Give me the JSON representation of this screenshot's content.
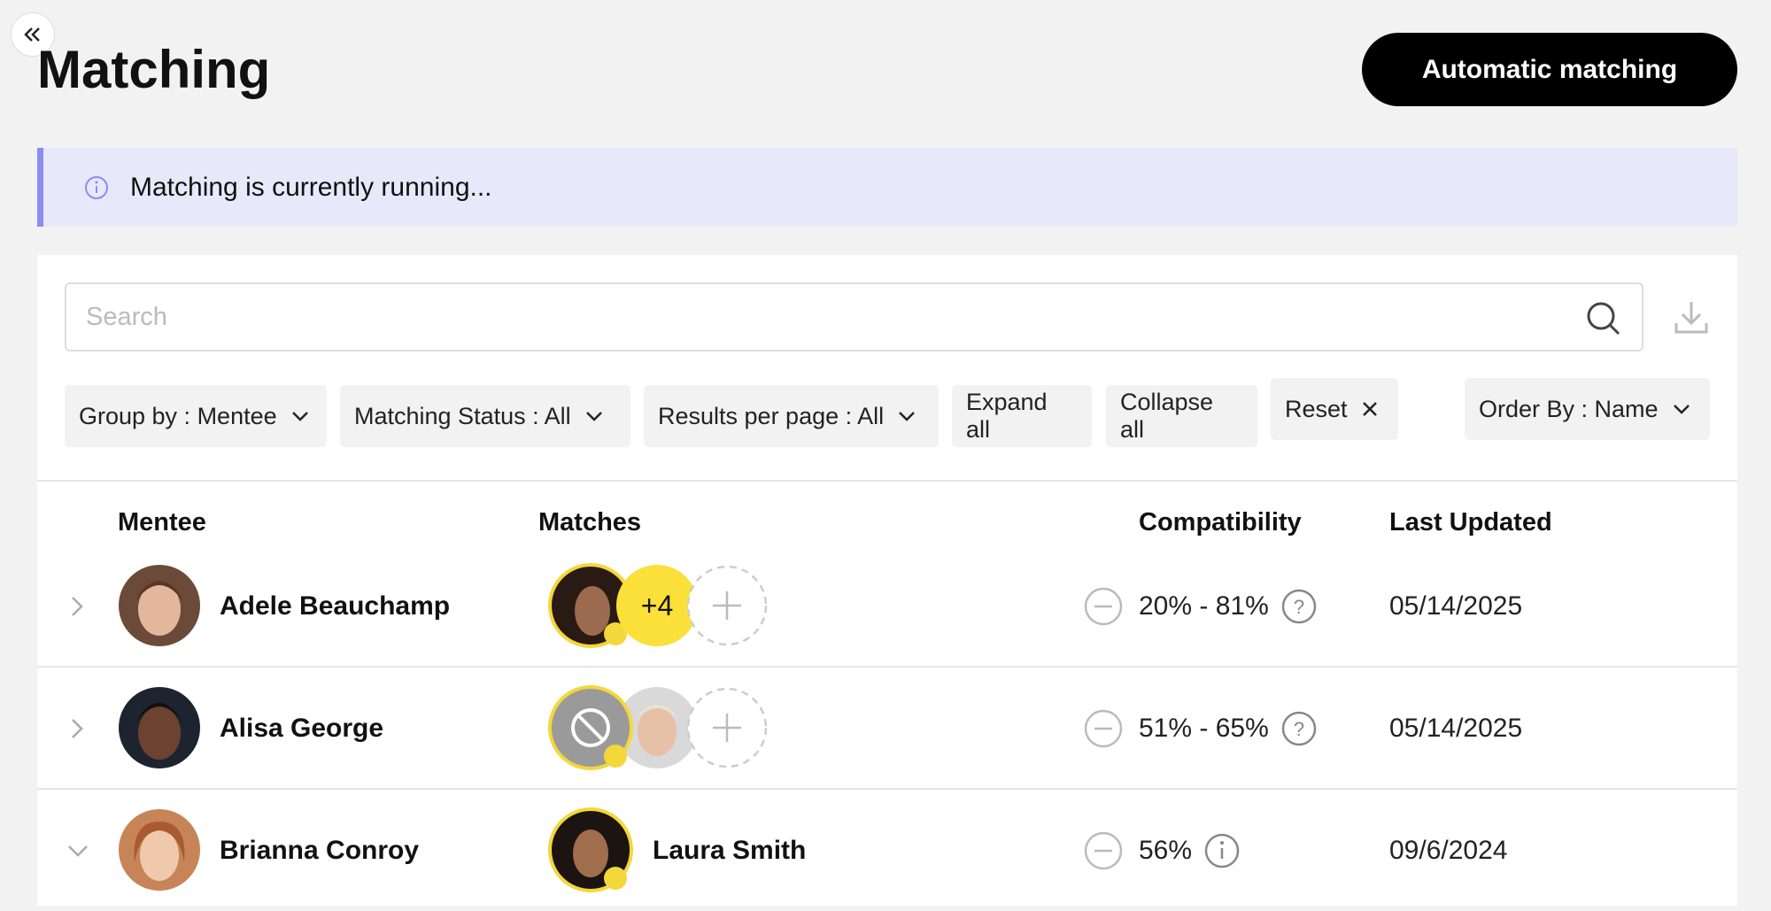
{
  "header": {
    "title": "Matching",
    "button": "Automatic matching"
  },
  "banner": {
    "message": "Matching is currently running..."
  },
  "search": {
    "placeholder": "Search"
  },
  "filters": [
    "Group by : Mentee",
    "Matching Status : All",
    "Results per page : All",
    "Expand all",
    "Collapse all",
    "Reset"
  ],
  "order_by": "Order By : Name",
  "table": {
    "columns": [
      "Mentee",
      "Matches",
      "Compatibility",
      "Last Updated"
    ],
    "rows": [
      {
        "mentee": "Adele Beauchamp",
        "extra_matches": "+4",
        "compatibility": "20% - 81%",
        "last_updated": "05/14/2025"
      },
      {
        "mentee": "Alisa George",
        "compatibility": "51% - 65%",
        "last_updated": "05/14/2025"
      },
      {
        "mentee": "Brianna Conroy",
        "match_name": "Laura Smith",
        "compatibility": "56%",
        "last_updated": "09/6/2024"
      }
    ]
  }
}
